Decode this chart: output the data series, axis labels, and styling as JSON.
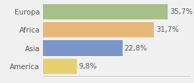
{
  "categories": [
    "Europa",
    "Africa",
    "Asia",
    "America"
  ],
  "values": [
    35.7,
    31.7,
    22.8,
    9.8
  ],
  "labels": [
    "35,7%",
    "31,7%",
    "22,8%",
    "9,8%"
  ],
  "bar_colors": [
    "#a8bf8a",
    "#e8b87a",
    "#7b96c8",
    "#e8d070"
  ],
  "background_color": "#f0f0f0",
  "xlim": [
    0,
    42
  ],
  "bar_height": 0.85,
  "label_fontsize": 7.5,
  "category_fontsize": 7.5
}
